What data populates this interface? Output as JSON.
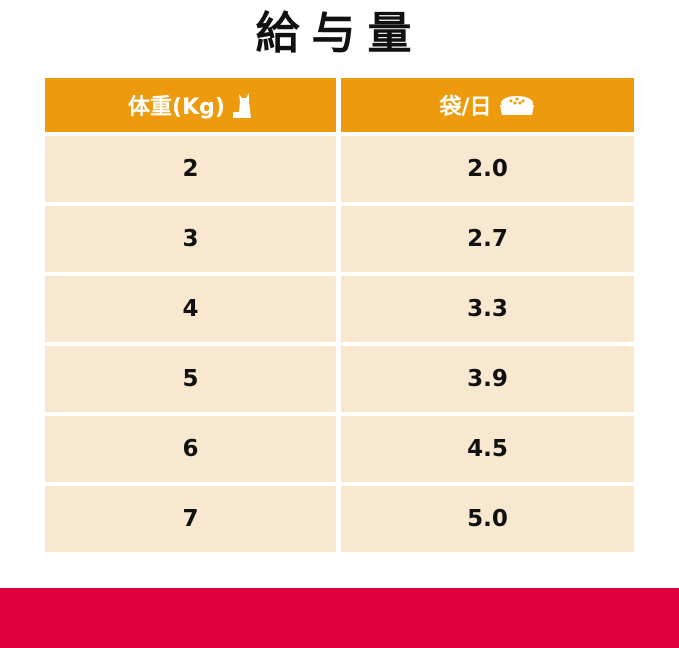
{
  "title": "給与量",
  "table": {
    "headers": [
      {
        "label": "体重(Kg)",
        "icon": "cat-icon"
      },
      {
        "label": "袋/日",
        "icon": "food-bowl-icon"
      }
    ],
    "rows": [
      {
        "weight": "2",
        "amount": "2.0"
      },
      {
        "weight": "3",
        "amount": "2.7"
      },
      {
        "weight": "4",
        "amount": "3.3"
      },
      {
        "weight": "5",
        "amount": "3.9"
      },
      {
        "weight": "6",
        "amount": "4.5"
      },
      {
        "weight": "7",
        "amount": "5.0"
      }
    ]
  },
  "colors": {
    "header": "#ee9a0d",
    "cell": "#f8e8cf",
    "band": "#e0003c"
  }
}
